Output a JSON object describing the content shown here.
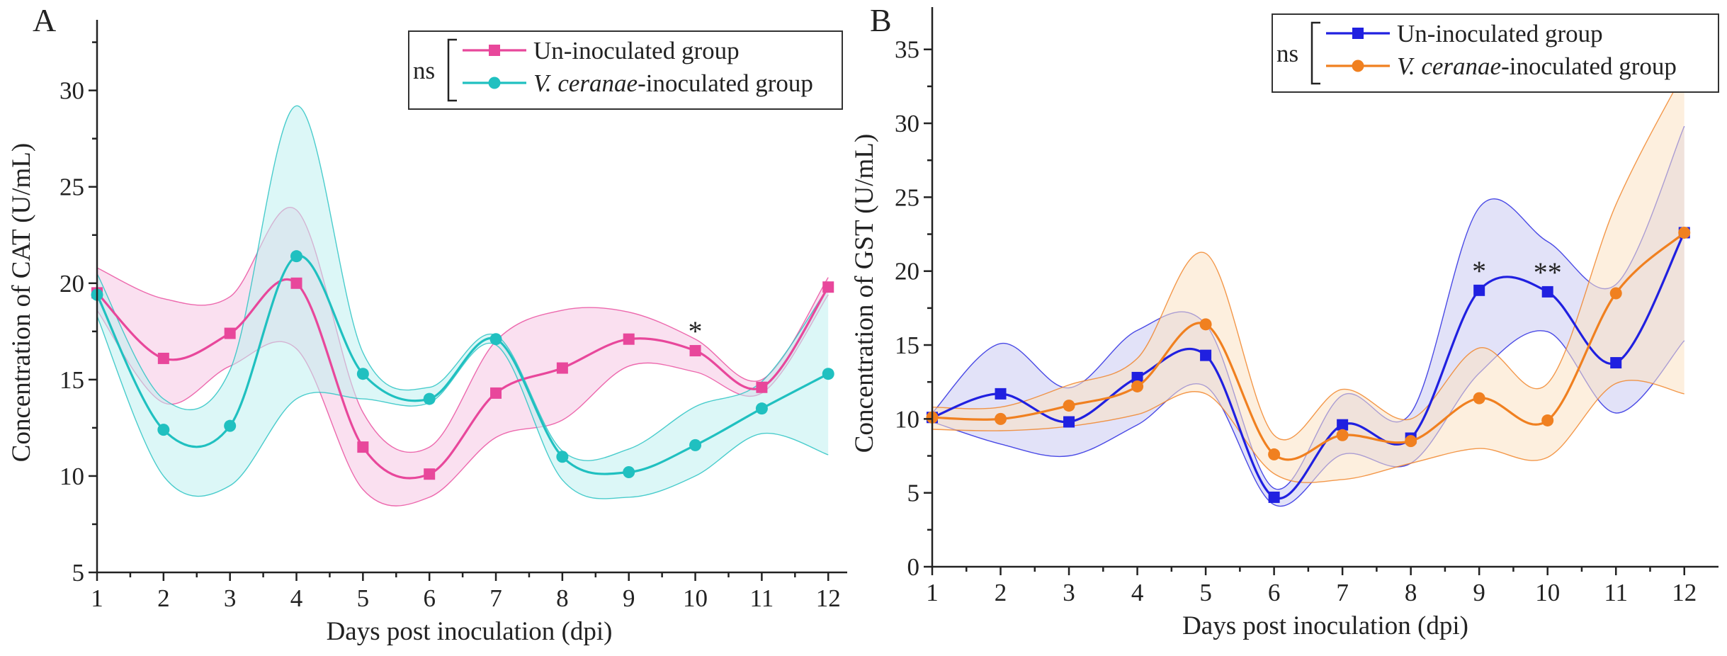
{
  "chart_data": [
    {
      "type": "line",
      "panel": "A",
      "title": "",
      "xlabel": "Days post inoculation (dpi)",
      "ylabel": "Concentration of CAT (U/mL)",
      "xlim": [
        1,
        12.2
      ],
      "ylim": [
        5,
        33
      ],
      "x_ticks": [
        1,
        2,
        3,
        4,
        5,
        6,
        7,
        8,
        9,
        10,
        11,
        12
      ],
      "y_ticks": [
        5,
        10,
        15,
        20,
        25,
        30
      ],
      "legend_position": "top-right",
      "significance_label": "ns",
      "series": [
        {
          "name": "Un-inoculated group",
          "marker": "square",
          "color": "#e8479b",
          "band_color": "#f6c6e4",
          "x": [
            1,
            2,
            3,
            4,
            5,
            6,
            7,
            8,
            9,
            10,
            11,
            12
          ],
          "values": [
            19.5,
            16.1,
            17.4,
            20.0,
            11.5,
            10.1,
            14.3,
            15.6,
            17.1,
            16.5,
            14.6,
            19.8
          ],
          "upper": [
            20.8,
            19.2,
            19.3,
            23.8,
            13.3,
            11.5,
            17.0,
            18.6,
            18.5,
            17.1,
            15.0,
            20.3
          ],
          "lower": [
            18.6,
            13.8,
            15.7,
            16.6,
            9.3,
            8.9,
            12.0,
            12.9,
            15.7,
            15.4,
            14.3,
            19.4
          ]
        },
        {
          "name": "V. ceranae-inoculated group",
          "name_italic": "V. ceranae",
          "name_rest": "-inoculated group",
          "marker": "circle",
          "color": "#20c0c0",
          "band_color": "#c0f0f0",
          "x": [
            1,
            2,
            3,
            4,
            5,
            6,
            7,
            8,
            9,
            10,
            11,
            12
          ],
          "values": [
            19.4,
            12.4,
            12.6,
            21.4,
            15.3,
            14.0,
            17.1,
            11.0,
            10.2,
            11.6,
            13.5,
            15.3
          ],
          "upper": [
            20.5,
            14.0,
            15.5,
            29.2,
            16.4,
            14.6,
            17.3,
            11.3,
            11.4,
            13.6,
            14.9,
            19.8
          ],
          "lower": [
            18.3,
            10.0,
            9.5,
            14.0,
            14.0,
            13.8,
            16.8,
            9.8,
            8.9,
            10.0,
            12.2,
            11.1
          ]
        }
      ],
      "annotations": [
        {
          "text": "*",
          "x": 10,
          "y": 16.5
        }
      ]
    },
    {
      "type": "line",
      "panel": "B",
      "title": "",
      "xlabel": "Days post inoculation (dpi)",
      "ylabel": "Concentration of GST (U/mL)",
      "xlim": [
        1,
        12.5
      ],
      "ylim": [
        0,
        37
      ],
      "x_ticks": [
        1,
        2,
        3,
        4,
        5,
        6,
        7,
        8,
        9,
        10,
        11,
        12
      ],
      "y_ticks": [
        0,
        5,
        10,
        15,
        20,
        25,
        30,
        35
      ],
      "legend_position": "top-right",
      "significance_label": "ns",
      "series": [
        {
          "name": "Un-inoculated group",
          "marker": "square",
          "color": "#2020e0",
          "band_color": "#cbcaf2",
          "x": [
            1,
            2,
            3,
            4,
            5,
            6,
            7,
            8,
            9,
            10,
            11,
            12
          ],
          "values": [
            10.1,
            11.7,
            9.8,
            12.8,
            14.3,
            4.7,
            9.6,
            8.7,
            18.7,
            18.6,
            13.8,
            22.6
          ],
          "upper": [
            10.4,
            15.1,
            12.1,
            16.0,
            16.4,
            5.3,
            11.6,
            10.4,
            24.3,
            22.0,
            19.1,
            29.8
          ],
          "lower": [
            9.8,
            8.3,
            7.5,
            9.6,
            12.2,
            4.2,
            7.6,
            7.0,
            13.1,
            15.9,
            10.4,
            15.3
          ]
        },
        {
          "name": "V. ceranae-inoculated group",
          "name_italic": "V. ceranae",
          "name_rest": "-inoculated group",
          "marker": "circle",
          "color": "#f08020",
          "band_color": "#fbe1c2",
          "x": [
            1,
            2,
            3,
            4,
            5,
            6,
            7,
            8,
            9,
            10,
            11,
            12
          ],
          "values": [
            10.1,
            10.0,
            10.9,
            12.2,
            16.4,
            7.6,
            8.9,
            8.5,
            11.4,
            9.9,
            18.5,
            22.6
          ],
          "upper": [
            10.8,
            10.8,
            12.3,
            14.1,
            21.2,
            8.9,
            12.0,
            10.0,
            14.8,
            12.4,
            24.5,
            33.5
          ],
          "lower": [
            9.3,
            9.2,
            9.5,
            10.3,
            11.7,
            6.3,
            5.9,
            7.0,
            8.0,
            7.4,
            12.4,
            11.7
          ]
        }
      ],
      "annotations": [
        {
          "text": "*",
          "x": 9,
          "y": 18.7
        },
        {
          "text": "**",
          "x": 10,
          "y": 18.6
        }
      ]
    }
  ]
}
